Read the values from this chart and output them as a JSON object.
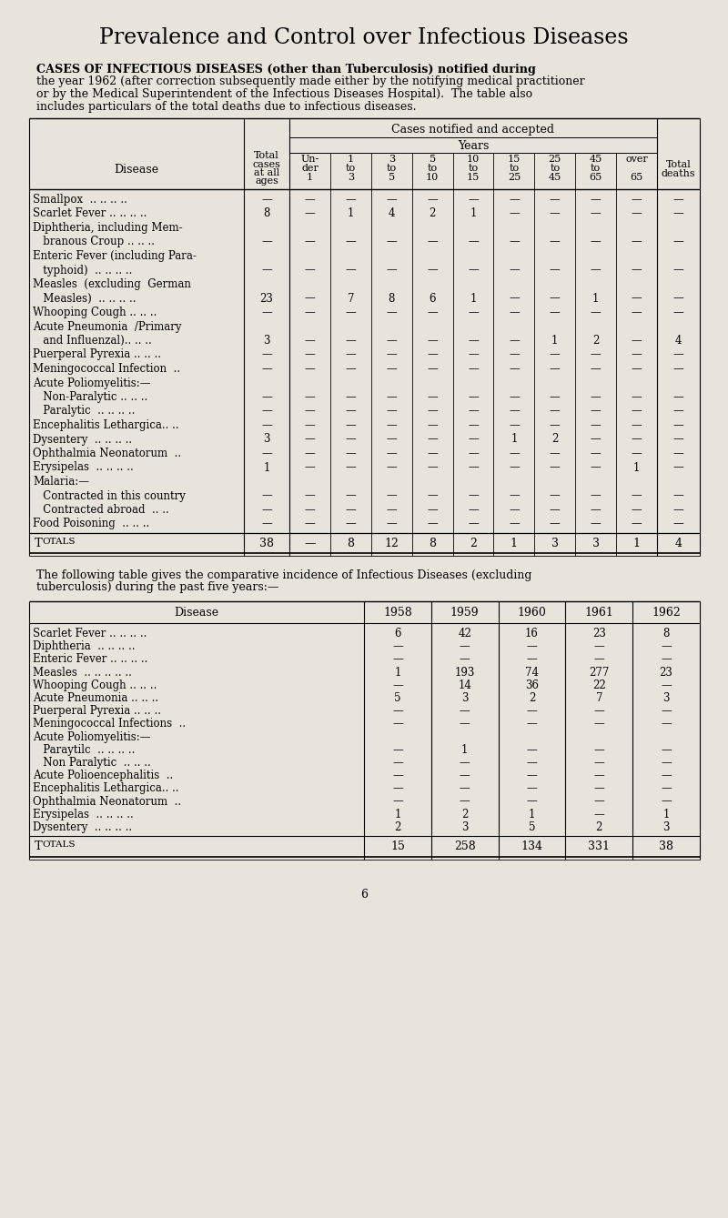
{
  "bg_color": "#e8e4dc",
  "title": "Prevalence and Control over Infectious Diseases",
  "intro_lines": [
    "CASES OF INFECTIOUS DISEASES (other than Tuberculosis) notified during",
    "the year 1962 (after correction subsequently made either by the notifying medical practitioner",
    "or by the Medical Superintendent of the Infectious Diseases Hospital).  The table also",
    "includes particulars of the total deaths due to infectious diseases."
  ],
  "table1_rows": [
    {
      "disease": "Smallpox  .. .. .. ..",
      "total": "—",
      "ages": [
        "—",
        "—",
        "—",
        "—",
        "—",
        "—",
        "—",
        "—",
        "—"
      ],
      "deaths": "—"
    },
    {
      "disease": "Scarlet Fever .. .. .. ..",
      "total": "8",
      "ages": [
        "—",
        "1",
        "4",
        "2",
        "1",
        "—",
        "—",
        "—",
        "—"
      ],
      "deaths": "—"
    },
    {
      "disease": "Diphtheria, including Mem-",
      "total": "",
      "ages": [
        "",
        "",
        "",
        "",
        "",
        "",
        "",
        "",
        ""
      ],
      "deaths": ""
    },
    {
      "disease": "   branous Croup .. .. ..",
      "total": "—",
      "ages": [
        "—",
        "—",
        "—",
        "—",
        "—",
        "—",
        "—",
        "—",
        "—"
      ],
      "deaths": "—"
    },
    {
      "disease": "Enteric Fever (including Para-",
      "total": "",
      "ages": [
        "",
        "",
        "",
        "",
        "",
        "",
        "",
        "",
        ""
      ],
      "deaths": ""
    },
    {
      "disease": "   typhoid)  .. .. .. ..",
      "total": "—",
      "ages": [
        "—",
        "—",
        "—",
        "—",
        "—",
        "—",
        "—",
        "—",
        "—"
      ],
      "deaths": "—"
    },
    {
      "disease": "Measles  (excluding  German",
      "total": "",
      "ages": [
        "",
        "",
        "",
        "",
        "",
        "",
        "",
        "",
        ""
      ],
      "deaths": ""
    },
    {
      "disease": "   Measles)  .. .. .. ..",
      "total": "23",
      "ages": [
        "—",
        "7",
        "8",
        "6",
        "1",
        "—",
        "—",
        "1",
        "—"
      ],
      "deaths": "—"
    },
    {
      "disease": "Whooping Cough .. .. ..",
      "total": "—",
      "ages": [
        "—",
        "—",
        "—",
        "—",
        "—",
        "—",
        "—",
        "—",
        "—"
      ],
      "deaths": "—"
    },
    {
      "disease": "Acute Pneumonia  /Primary",
      "total": "",
      "ages": [
        "",
        "",
        "",
        "",
        "",
        "",
        "",
        "",
        ""
      ],
      "deaths": ""
    },
    {
      "disease": "   and Influenzal).. .. ..",
      "total": "3",
      "ages": [
        "—",
        "—",
        "—",
        "—",
        "—",
        "—",
        "1",
        "2",
        "—"
      ],
      "deaths": "4"
    },
    {
      "disease": "Puerperal Pyrexia .. .. ..",
      "total": "—",
      "ages": [
        "—",
        "—",
        "—",
        "—",
        "—",
        "—",
        "—",
        "—",
        "—"
      ],
      "deaths": "—"
    },
    {
      "disease": "Meningococcal Infection  ..",
      "total": "—",
      "ages": [
        "—",
        "—",
        "—",
        "—",
        "—",
        "—",
        "—",
        "—",
        "—"
      ],
      "deaths": "—"
    },
    {
      "disease": "Acute Poliomyelitis:—",
      "total": "",
      "ages": [
        "",
        "",
        "",
        "",
        "",
        "",
        "",
        "",
        ""
      ],
      "deaths": ""
    },
    {
      "disease": "   Non-Paralytic .. .. ..",
      "total": "—",
      "ages": [
        "—",
        "—",
        "—",
        "—",
        "—",
        "—",
        "—",
        "—",
        "—"
      ],
      "deaths": "—"
    },
    {
      "disease": "   Paralytic  .. .. .. ..",
      "total": "—",
      "ages": [
        "—",
        "—",
        "—",
        "—",
        "—",
        "—",
        "—",
        "—",
        "—"
      ],
      "deaths": "—"
    },
    {
      "disease": "Encephalitis Lethargica.. ..",
      "total": "—",
      "ages": [
        "—",
        "—",
        "—",
        "—",
        "—",
        "—",
        "—",
        "—",
        "—"
      ],
      "deaths": "—"
    },
    {
      "disease": "Dysentery  .. .. .. ..",
      "total": "3",
      "ages": [
        "—",
        "—",
        "—",
        "—",
        "—",
        "1",
        "2",
        "—",
        "—"
      ],
      "deaths": "—"
    },
    {
      "disease": "Ophthalmia Neonatorum  ..",
      "total": "—",
      "ages": [
        "—",
        "—",
        "—",
        "—",
        "—",
        "—",
        "—",
        "—",
        "—"
      ],
      "deaths": "—"
    },
    {
      "disease": "Erysipelas  .. .. .. ..",
      "total": "1",
      "ages": [
        "—",
        "—",
        "—",
        "—",
        "—",
        "—",
        "—",
        "—",
        "1"
      ],
      "deaths": "—"
    },
    {
      "disease": "Malaria:—",
      "total": "",
      "ages": [
        "",
        "",
        "",
        "",
        "",
        "",
        "",
        "",
        ""
      ],
      "deaths": ""
    },
    {
      "disease": "   Contracted in this country",
      "total": "—",
      "ages": [
        "—",
        "—",
        "—",
        "—",
        "—",
        "—",
        "—",
        "—",
        "—"
      ],
      "deaths": "—"
    },
    {
      "disease": "   Contracted abroad  .. ..",
      "total": "—",
      "ages": [
        "—",
        "—",
        "—",
        "—",
        "—",
        "—",
        "—",
        "—",
        "—"
      ],
      "deaths": "—"
    },
    {
      "disease": "Food Poisoning  .. .. ..",
      "total": "—",
      "ages": [
        "—",
        "—",
        "—",
        "—",
        "—",
        "—",
        "—",
        "—",
        "—"
      ],
      "deaths": "—"
    }
  ],
  "table1_totals": {
    "total": "38",
    "ages": [
      "—",
      "8",
      "12",
      "8",
      "2",
      "1",
      "3",
      "3",
      "1"
    ],
    "deaths": "4"
  },
  "table2_intro": [
    "The following table gives the comparative incidence of Infectious Diseases (excluding",
    "tuberculosis) during the past five years:—"
  ],
  "table2_rows": [
    [
      "Scarlet Fever .. .. .. ..",
      "6",
      "42",
      "16",
      "23",
      "8"
    ],
    [
      "Diphtheria  .. .. .. ..",
      "—",
      "—",
      "—",
      "—",
      "—"
    ],
    [
      "Enteric Fever .. .. .. ..",
      "—",
      "—",
      "—",
      "—",
      "—"
    ],
    [
      "Measles  .. .. .. .. ..",
      "1",
      "193",
      "74",
      "277",
      "23"
    ],
    [
      "Whooping Cough .. .. ..",
      "—",
      "14",
      "36",
      "22",
      "—"
    ],
    [
      "Acute Pneumonia .. .. ..",
      "5",
      "3",
      "2",
      "7",
      "3"
    ],
    [
      "Puerperal Pyrexia .. .. ..",
      "—",
      "—",
      "—",
      "—",
      "—"
    ],
    [
      "Meningococcal Infections  ..",
      "—",
      "—",
      "—",
      "—",
      "—"
    ],
    [
      "Acute Poliomyelitis:—",
      "",
      "",
      "",
      "",
      ""
    ],
    [
      "   Paraytilc  .. .. .. ..",
      "—",
      "1",
      "—",
      "—",
      "—"
    ],
    [
      "   Non Paralytic  .. .. ..",
      "—",
      "—",
      "—",
      "—",
      "—"
    ],
    [
      "Acute Polioencephalitis  ..",
      "—",
      "—",
      "—",
      "—",
      "—"
    ],
    [
      "Encephalitis Lethargica.. ..",
      "—",
      "—",
      "—",
      "—",
      "—"
    ],
    [
      "Ophthalmia Neonatorum  ..",
      "—",
      "—",
      "—",
      "—",
      "—"
    ],
    [
      "Erysipelas  .. .. .. ..",
      "1",
      "2",
      "1",
      "—",
      "1"
    ],
    [
      "Dysentery  .. .. .. ..",
      "2",
      "3",
      "5",
      "2",
      "3"
    ]
  ],
  "table2_totals": [
    "15",
    "258",
    "134",
    "331",
    "38"
  ],
  "page_number": "6"
}
